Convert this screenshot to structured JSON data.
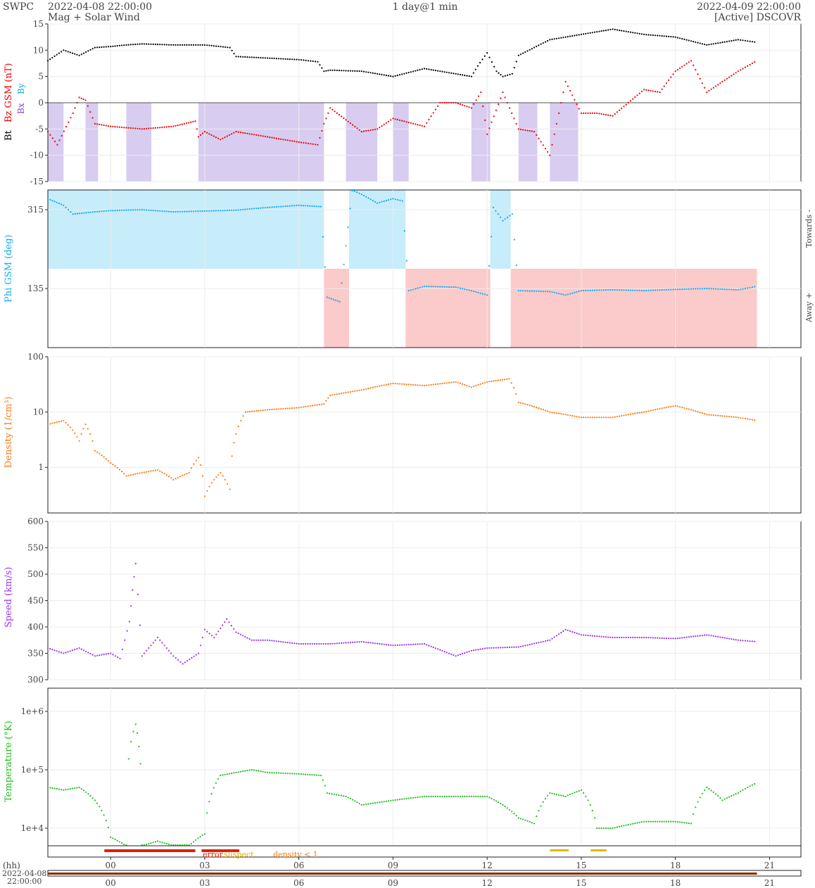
{
  "header": {
    "org": "SWPC",
    "start": "2022-04-08 22:00:00",
    "subtitle": "Mag + Solar Wind",
    "span": "1 day@1 min",
    "end": "2022-04-09 22:00:00",
    "source": "[Active] DSCOVR"
  },
  "colors": {
    "bt": "#000000",
    "bz": "#ee0000",
    "phi": "#11aaee",
    "density": "#ff7711",
    "speed": "#9933ee",
    "temperature": "#22bb22",
    "bz_shade": "#d8ccf0",
    "towards_shade": "#c7ecfa",
    "away_shade": "#fbcaca",
    "error": "#dd2200",
    "suspect": "#ddbb00"
  },
  "x_axis": {
    "unit_label": "(hh)",
    "date_label_1": "2022-04-08",
    "date_label_2": "22:00:00",
    "ticks": [
      "00",
      "03",
      "06",
      "09",
      "12",
      "15",
      "18",
      "21"
    ]
  },
  "legend": {
    "error": "error",
    "suspect": "suspect",
    "density": "density < 1"
  },
  "chart_data": [
    {
      "type": "scatter",
      "name": "mag",
      "ylabel_parts": [
        "Bt",
        "Bz GSM (nT)",
        "Bx",
        "By"
      ],
      "ylim": [
        -15,
        15
      ],
      "yticks": [
        "15",
        "10",
        "5",
        "0",
        "-5",
        "-10",
        "-15"
      ],
      "series": [
        {
          "name": "Bt",
          "x": [
            -2,
            -1.5,
            -1,
            -0.5,
            0,
            0.5,
            1,
            2,
            3,
            3.8,
            4,
            5,
            6,
            6.6,
            6.8,
            7,
            8,
            9,
            10,
            11,
            11.5,
            11.7,
            12,
            12.3,
            12.5,
            12.8,
            13,
            14,
            15,
            16,
            17,
            18,
            19,
            20,
            20.6
          ],
          "y": [
            8,
            10,
            9,
            10.5,
            10.7,
            11,
            11.2,
            11,
            11,
            10.5,
            8.8,
            8.5,
            8.2,
            7.8,
            6,
            6.2,
            6,
            5,
            6.5,
            5.5,
            5,
            7,
            9.5,
            6,
            5,
            5.5,
            9,
            12,
            13,
            14,
            13,
            12.5,
            11,
            12,
            11.5
          ]
        },
        {
          "name": "Bz GSM",
          "x": [
            -2,
            -1.7,
            -1.2,
            -1,
            -0.8,
            -0.5,
            0,
            1,
            2,
            2.7,
            2.8,
            3,
            3.5,
            4,
            5,
            6,
            6.6,
            6.8,
            7,
            8,
            8.5,
            9,
            10,
            10.5,
            11,
            11.5,
            11.8,
            12,
            12.5,
            13,
            13.5,
            14,
            14.5,
            15,
            15.5,
            16,
            16.5,
            17,
            17.5,
            18,
            18.5,
            19,
            19.5,
            20,
            20.6
          ],
          "y": [
            -5.5,
            -8,
            -2,
            1,
            0.5,
            -4,
            -4.5,
            -5,
            -4.5,
            -3.5,
            -6.5,
            -5.5,
            -7,
            -5.5,
            -6.5,
            -7.5,
            -8,
            -4,
            -1,
            -5.5,
            -5,
            -3,
            -4.5,
            0,
            0,
            -1,
            2,
            -6,
            2,
            -5,
            -5.5,
            -10,
            4,
            -2,
            -2,
            -2.5,
            0,
            2.5,
            2,
            6,
            8,
            2,
            4,
            6,
            8
          ]
        }
      ],
      "bz_negative_shade_hours": [
        [
          -2,
          -1.5
        ],
        [
          -0.8,
          -0.4
        ],
        [
          0.5,
          1.3
        ],
        [
          2.8,
          6.8
        ],
        [
          7.5,
          8.5
        ],
        [
          9,
          9.5
        ],
        [
          11.5,
          12.1
        ],
        [
          13,
          13.6
        ],
        [
          14,
          14.9
        ]
      ]
    },
    {
      "type": "scatter",
      "name": "phi",
      "ylabel": "Phi GSM (deg)",
      "right_labels": [
        "Towards -",
        "Away +"
      ],
      "yticks": [
        "315",
        "135"
      ],
      "towards_shade_hours": [
        [
          -2,
          6.8
        ],
        [
          7.6,
          9.4
        ],
        [
          12.1,
          12.75
        ]
      ],
      "away_shade_hours": [
        [
          6.8,
          7.6
        ],
        [
          9.4,
          12.1
        ],
        [
          12.75,
          20.6
        ]
      ],
      "series": [
        {
          "name": "Phi",
          "x": [
            -2,
            -1.5,
            -1.2,
            -0.5,
            0,
            1,
            2,
            3,
            4,
            5,
            6,
            6.7,
            6.9,
            7.3,
            7.7,
            8,
            8.5,
            9,
            9.3,
            9.5,
            10,
            11,
            11.5,
            12,
            12.2,
            12.5,
            12.8,
            13,
            14,
            14.5,
            15,
            16,
            17,
            18,
            19,
            20,
            20.6
          ],
          "y": [
            340,
            325,
            305,
            310,
            313,
            315,
            310,
            312,
            314,
            320,
            325,
            322,
            115,
            105,
            360,
            350,
            330,
            340,
            335,
            130,
            140,
            138,
            130,
            120,
            320,
            290,
            305,
            130,
            128,
            120,
            130,
            132,
            130,
            133,
            135,
            132,
            140
          ]
        }
      ]
    },
    {
      "type": "scatter",
      "name": "density",
      "ylabel": "Density (1/cm³)",
      "log": true,
      "yticks": [
        "100",
        "10",
        "1"
      ],
      "series": [
        {
          "name": "Density",
          "x": [
            -2,
            -1.5,
            -1,
            -0.8,
            -0.5,
            0,
            0.5,
            1,
            1.5,
            2,
            2.5,
            2.8,
            3,
            3.3,
            3.5,
            3.8,
            4,
            4.3,
            5,
            6,
            6.8,
            7,
            8,
            9,
            10,
            11,
            11.5,
            12,
            12.7,
            13,
            14,
            15,
            16,
            17,
            18,
            19,
            20,
            20.6
          ],
          "y": [
            6,
            7,
            3,
            6,
            2,
            1.2,
            0.7,
            0.8,
            0.9,
            0.6,
            0.8,
            1.5,
            0.3,
            0.6,
            0.8,
            0.4,
            4,
            10,
            11,
            12,
            14,
            20,
            25,
            33,
            30,
            35,
            28,
            35,
            40,
            15,
            10,
            8,
            8,
            10,
            13,
            9,
            8,
            7
          ]
        }
      ]
    },
    {
      "type": "scatter",
      "name": "speed",
      "ylabel": "Speed (km/s)",
      "ylim": [
        300,
        600
      ],
      "yticks": [
        "600",
        "550",
        "500",
        "450",
        "400",
        "350",
        "300"
      ],
      "series": [
        {
          "name": "Speed",
          "x": [
            -2,
            -1.5,
            -1,
            -0.5,
            0,
            0.3,
            0.6,
            0.7,
            0.8,
            1,
            1.5,
            2,
            2.3,
            2.8,
            3,
            3.3,
            3.7,
            4,
            4.5,
            5,
            6,
            7,
            8,
            9,
            10,
            11,
            11.5,
            12,
            13,
            14,
            14.5,
            15,
            16,
            17,
            18,
            19,
            20,
            20.6
          ],
          "y": [
            360,
            350,
            360,
            345,
            350,
            340,
            410,
            470,
            520,
            345,
            380,
            345,
            330,
            350,
            395,
            380,
            415,
            390,
            375,
            375,
            368,
            368,
            372,
            365,
            368,
            345,
            355,
            360,
            362,
            375,
            395,
            385,
            380,
            380,
            378,
            385,
            375,
            372
          ]
        }
      ]
    },
    {
      "type": "scatter",
      "name": "temperature",
      "ylabel": "Temperature (°K)",
      "log": true,
      "yticks": [
        "1e+6",
        "1e+5",
        "1e+4"
      ],
      "series": [
        {
          "name": "Temperature",
          "x": [
            -2,
            -1.5,
            -1,
            -0.5,
            0,
            0.5,
            0.8,
            0.9,
            1,
            1.5,
            2,
            2.5,
            3,
            3.5,
            4,
            4.5,
            5,
            6,
            6.7,
            6.9,
            7.5,
            8,
            9,
            10,
            11,
            12,
            13,
            13.5,
            14,
            14.5,
            15,
            15.5,
            16,
            17,
            18,
            18.5,
            19,
            19.5,
            20,
            20.6
          ],
          "y": [
            50000,
            45000,
            50000,
            30000,
            7000,
            5000,
            600000,
            250000,
            5000,
            6000,
            5000,
            5000,
            8000,
            80000,
            90000,
            100000,
            90000,
            85000,
            80000,
            40000,
            35000,
            25000,
            30000,
            35000,
            35000,
            35000,
            15000,
            12000,
            40000,
            35000,
            45000,
            10000,
            10000,
            13000,
            13000,
            12000,
            50000,
            30000,
            40000,
            60000
          ]
        }
      ]
    }
  ]
}
